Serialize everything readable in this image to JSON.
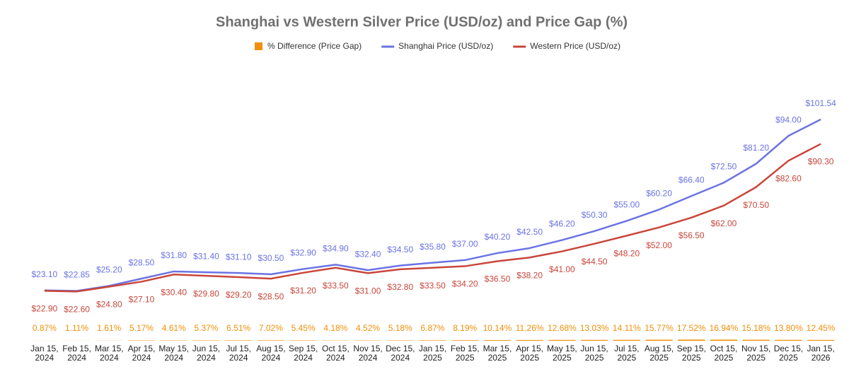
{
  "chart_data": {
    "type": "line",
    "title": "Shanghai vs Western Silver Price (USD/oz) and Price Gap (%)",
    "categories": [
      "Jan 15, 2024",
      "Feb 15, 2024",
      "Mar 15, 2024",
      "Apr 15, 2024",
      "May 15, 2024",
      "Jun 15, 2024",
      "Jul 15, 2024",
      "Aug 15, 2024",
      "Sep 15, 2024",
      "Oct 15, 2024",
      "Nov 15, 2024",
      "Dec 15, 2024",
      "Jan 15, 2025",
      "Feb 15, 2025",
      "Mar 15, 2025",
      "Apr 15, 2025",
      "May 15, 2025",
      "Jun 15, 2025",
      "Jul 15, 2025",
      "Aug 15, 2025",
      "Sep 15, 2025",
      "Oct 15, 2025",
      "Nov 15, 2025",
      "Dec 15, 2025",
      "Jan 15, 2026"
    ],
    "series": [
      {
        "name": "% Difference (Price Gap)",
        "type": "bar",
        "axis": "y2",
        "color": "#f0900a",
        "values": [
          0.87,
          1.11,
          1.61,
          5.17,
          4.61,
          5.37,
          6.51,
          7.02,
          5.45,
          4.18,
          4.52,
          5.18,
          6.87,
          8.19,
          10.14,
          11.26,
          12.68,
          13.03,
          14.11,
          15.77,
          17.52,
          16.94,
          15.18,
          13.8,
          12.45
        ],
        "value_labels": [
          "0.87%",
          "1.11%",
          "1.61%",
          "5.17%",
          "4.61%",
          "5.37%",
          "6.51%",
          "7.02%",
          "5.45%",
          "4.18%",
          "4.52%",
          "5.18%",
          "6.87%",
          "8.19%",
          "10.14%",
          "11.26%",
          "12.68%",
          "13.03%",
          "14.11%",
          "15.77%",
          "17.52%",
          "16.94%",
          "15.18%",
          "13.80%",
          "12.45%"
        ]
      },
      {
        "name": "Shanghai Price (USD/oz)",
        "type": "line",
        "color": "#6b73e3",
        "values": [
          23.1,
          22.85,
          25.2,
          28.5,
          31.8,
          31.4,
          31.1,
          30.5,
          32.9,
          34.9,
          32.4,
          34.5,
          35.8,
          37.0,
          40.2,
          42.5,
          46.2,
          50.3,
          55.0,
          60.2,
          66.4,
          72.5,
          81.2,
          94.0,
          101.54
        ],
        "value_labels": [
          "$23.10",
          "$22.85",
          "$25.20",
          "$28.50",
          "$31.80",
          "$31.40",
          "$31.10",
          "$30.50",
          "$32.90",
          "$34.90",
          "$32.40",
          "$34.50",
          "$35.80",
          "$37.00",
          "$40.20",
          "$42.50",
          "$46.20",
          "$50.30",
          "$55.00",
          "$60.20",
          "$66.40",
          "$72.50",
          "$81.20",
          "$94.00",
          "$101.54"
        ]
      },
      {
        "name": "Western Price (USD/oz)",
        "type": "line",
        "color": "#c9463b",
        "values": [
          22.9,
          22.6,
          24.8,
          27.1,
          30.4,
          29.8,
          29.2,
          28.5,
          31.2,
          33.5,
          31.0,
          32.8,
          33.5,
          34.2,
          36.5,
          38.2,
          41.0,
          44.5,
          48.2,
          52.0,
          56.5,
          62.0,
          70.5,
          82.6,
          90.3
        ],
        "value_labels": [
          "$22.90",
          "$22.60",
          "$24.80",
          "$27.10",
          "$30.40",
          "$29.80",
          "$29.20",
          "$28.50",
          "$31.20",
          "$33.50",
          "$31.00",
          "$32.80",
          "$33.50",
          "$34.20",
          "$36.50",
          "$38.20",
          "$41.00",
          "$44.50",
          "$48.20",
          "$52.00",
          "$56.50",
          "$62.00",
          "$70.50",
          "$82.60",
          "$90.30"
        ]
      }
    ],
    "ylim": [
      0,
      120
    ],
    "y2lim": [
      0,
      4000
    ],
    "legend": "top"
  }
}
